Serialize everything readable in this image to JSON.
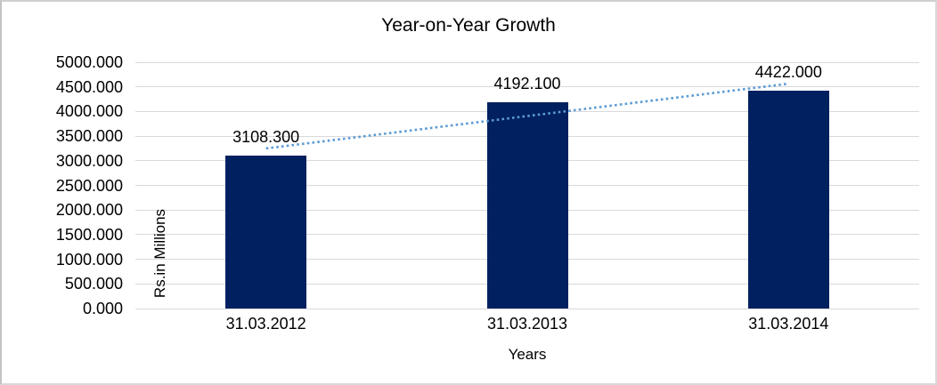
{
  "frame": {
    "background": "#ffffff",
    "border_color": "#cccccc"
  },
  "chart_data": {
    "type": "bar",
    "title": "Year-on-Year Growth",
    "xlabel": "Years",
    "ylabel": "Rs.in Millions",
    "categories": [
      "31.03.2012",
      "31.03.2013",
      "31.03.2014"
    ],
    "values": [
      3108.3,
      4192.1,
      4422.0
    ],
    "value_labels": [
      "3108.300",
      "4192.100",
      "4422.000"
    ],
    "ylim": [
      0,
      5000
    ],
    "ytick_step": 500,
    "ytick_labels": [
      "0.000",
      "500.000",
      "1000.000",
      "1500.000",
      "2000.000",
      "2500.000",
      "3000.000",
      "3500.000",
      "4000.000",
      "4500.000",
      "5000.000"
    ],
    "grid": true,
    "legend": "none",
    "bar_color": "#002060",
    "gridline_color": "#d9d9d9",
    "text_color": "#000000",
    "trendline": {
      "type": "linear",
      "style": "dotted",
      "color": "#5b9bd5"
    }
  }
}
